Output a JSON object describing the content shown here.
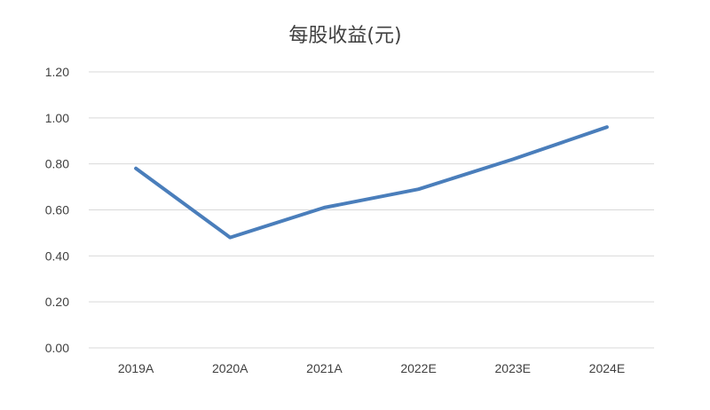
{
  "chart_data": {
    "type": "line",
    "title": "每股收益(元)",
    "xlabel": "",
    "ylabel": "",
    "categories": [
      "2019A",
      "2020A",
      "2021A",
      "2022E",
      "2023E",
      "2024E"
    ],
    "series": [
      {
        "values": [
          0.78,
          0.48,
          0.61,
          0.69,
          0.82,
          0.96
        ],
        "color": "#4a7ebb"
      }
    ],
    "ylim": [
      0,
      1.2
    ],
    "yticks": [
      "0.00",
      "0.20",
      "0.40",
      "0.60",
      "0.80",
      "1.00",
      "1.20"
    ],
    "grid": true,
    "legend": "none"
  }
}
